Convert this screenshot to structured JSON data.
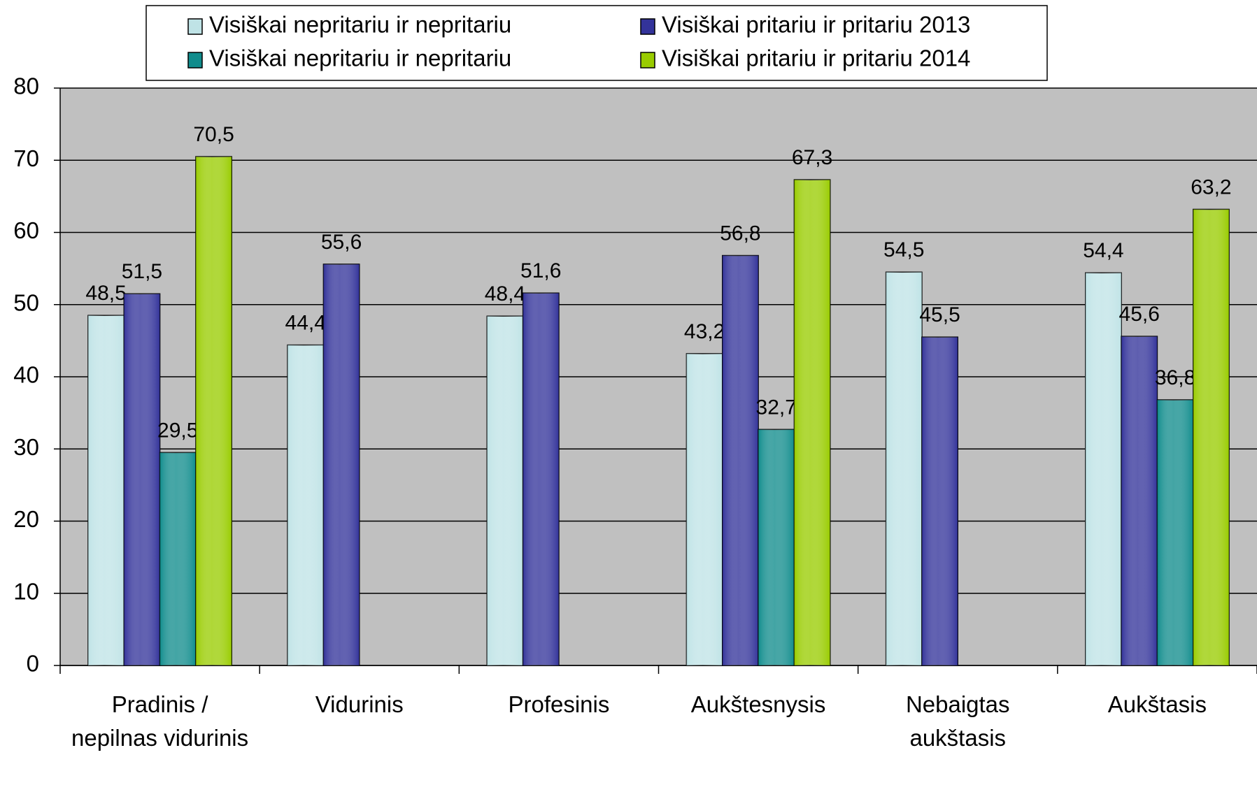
{
  "chart_data": {
    "type": "bar",
    "categories": [
      "Pradinis / nepilnas vidurinis",
      "Vidurinis",
      "Profesinis",
      "Aukštesnysis",
      "Nebaigtas aukštasis",
      "Aukštasis"
    ],
    "series": [
      {
        "name": "Visiškai nepritariu ir nepritariu",
        "color": "#bfe3e6",
        "values": [
          48.5,
          44.4,
          48.4,
          43.2,
          54.5,
          54.4
        ],
        "value_labels": [
          "48,5",
          "44,4",
          "48,4",
          "43,2",
          "54,5",
          "54,4"
        ]
      },
      {
        "name": "Visiškai pritariu ir pritariu 2013",
        "color": "#33339a",
        "values": [
          51.5,
          55.6,
          51.6,
          56.8,
          45.5,
          45.6
        ],
        "value_labels": [
          "51,5",
          "55,6",
          "51,6",
          "56,8",
          "45,5",
          "45,6"
        ]
      },
      {
        "name": "Visiškai nepritariu ir nepritariu",
        "color": "#108c8c",
        "values": [
          29.5,
          null,
          null,
          32.7,
          null,
          36.8
        ],
        "value_labels": [
          "29,5",
          null,
          null,
          "32,7",
          null,
          "36,8"
        ]
      },
      {
        "name": "Visiškai pritariu ir pritariu 2014",
        "color": "#99cc00",
        "values": [
          70.5,
          null,
          null,
          67.3,
          null,
          63.2
        ],
        "value_labels": [
          "70,5",
          null,
          null,
          "67,3",
          null,
          "63,2"
        ]
      }
    ],
    "ylim": [
      0,
      80
    ],
    "yticks": [
      0,
      10,
      20,
      30,
      40,
      50,
      60,
      70,
      80
    ],
    "grid": true
  }
}
